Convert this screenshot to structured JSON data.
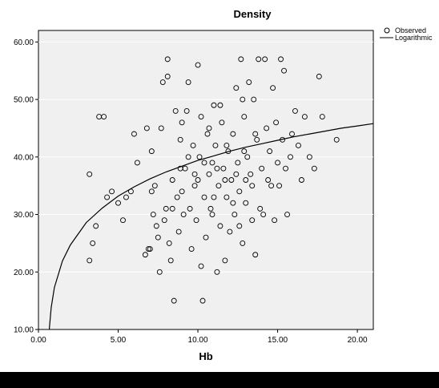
{
  "chart_data": {
    "type": "scatter",
    "title": "Density",
    "xlabel": "Hb",
    "ylabel": "",
    "xlim": [
      0,
      21
    ],
    "ylim": [
      10,
      62
    ],
    "x_ticks": [
      0,
      5,
      10,
      15,
      20
    ],
    "y_ticks": [
      10,
      20,
      30,
      40,
      50,
      60
    ],
    "x_tick_labels": [
      "0.00",
      "5.00",
      "10.00",
      "15.00",
      "20.00"
    ],
    "y_tick_labels": [
      "10.00",
      "20.00",
      "30.00",
      "40.00",
      "50.00",
      "60.00"
    ],
    "grid": "horizontal",
    "legend": {
      "placement": "right",
      "entries": [
        {
          "label": "Observed",
          "marker": "circle"
        },
        {
          "label": "Logarithmic",
          "marker": "line"
        }
      ]
    },
    "series": [
      {
        "name": "Observed",
        "type": "scatter",
        "points": [
          [
            3.2,
            37
          ],
          [
            3.2,
            22
          ],
          [
            3.4,
            25
          ],
          [
            3.6,
            28
          ],
          [
            3.8,
            47
          ],
          [
            4.1,
            47
          ],
          [
            4.3,
            33
          ],
          [
            4.6,
            34
          ],
          [
            5.0,
            32
          ],
          [
            5.3,
            29
          ],
          [
            5.5,
            33
          ],
          [
            5.8,
            34
          ],
          [
            6.0,
            44
          ],
          [
            6.2,
            39
          ],
          [
            6.7,
            23
          ],
          [
            6.8,
            45
          ],
          [
            6.9,
            24
          ],
          [
            7.0,
            24
          ],
          [
            7.1,
            34
          ],
          [
            7.1,
            41
          ],
          [
            7.2,
            30
          ],
          [
            7.3,
            35
          ],
          [
            7.4,
            28
          ],
          [
            7.5,
            26
          ],
          [
            7.6,
            20
          ],
          [
            7.7,
            45
          ],
          [
            7.8,
            53
          ],
          [
            7.9,
            29
          ],
          [
            8.0,
            31
          ],
          [
            8.1,
            57
          ],
          [
            8.1,
            54
          ],
          [
            8.2,
            25
          ],
          [
            8.3,
            22
          ],
          [
            8.4,
            36
          ],
          [
            8.5,
            15
          ],
          [
            8.6,
            48
          ],
          [
            8.7,
            33
          ],
          [
            8.8,
            27
          ],
          [
            8.9,
            43
          ],
          [
            9.0,
            46
          ],
          [
            9.1,
            30
          ],
          [
            9.2,
            38
          ],
          [
            9.3,
            48
          ],
          [
            9.4,
            53
          ],
          [
            9.5,
            31
          ],
          [
            9.6,
            24
          ],
          [
            9.7,
            42
          ],
          [
            9.8,
            35
          ],
          [
            9.9,
            29
          ],
          [
            10.0,
            56
          ],
          [
            10.1,
            40
          ],
          [
            10.2,
            21
          ],
          [
            10.3,
            15
          ],
          [
            10.4,
            33
          ],
          [
            10.5,
            26
          ],
          [
            10.6,
            44
          ],
          [
            10.7,
            37
          ],
          [
            10.8,
            31
          ],
          [
            10.9,
            39
          ],
          [
            11.0,
            49
          ],
          [
            11.1,
            42
          ],
          [
            11.2,
            20
          ],
          [
            11.3,
            35
          ],
          [
            11.4,
            28
          ],
          [
            11.5,
            46
          ],
          [
            11.6,
            38
          ],
          [
            11.7,
            22
          ],
          [
            11.8,
            33
          ],
          [
            11.9,
            41
          ],
          [
            12.0,
            27
          ],
          [
            12.1,
            36
          ],
          [
            12.2,
            44
          ],
          [
            12.3,
            30
          ],
          [
            12.4,
            52
          ],
          [
            12.5,
            39
          ],
          [
            12.6,
            34
          ],
          [
            12.7,
            57
          ],
          [
            12.8,
            25
          ],
          [
            12.9,
            47
          ],
          [
            13.0,
            32
          ],
          [
            13.1,
            40
          ],
          [
            13.2,
            53
          ],
          [
            13.3,
            37
          ],
          [
            13.4,
            29
          ],
          [
            13.5,
            50
          ],
          [
            13.6,
            23
          ],
          [
            13.7,
            43
          ],
          [
            13.8,
            57
          ],
          [
            13.9,
            31
          ],
          [
            14.0,
            38
          ],
          [
            14.1,
            30
          ],
          [
            14.2,
            57
          ],
          [
            14.3,
            45
          ],
          [
            14.4,
            36
          ],
          [
            14.5,
            41
          ],
          [
            14.6,
            35
          ],
          [
            14.7,
            52
          ],
          [
            14.8,
            29
          ],
          [
            14.9,
            46
          ],
          [
            15.0,
            39
          ],
          [
            15.1,
            35
          ],
          [
            15.2,
            57
          ],
          [
            15.3,
            43
          ],
          [
            15.5,
            38
          ],
          [
            15.6,
            30
          ],
          [
            15.8,
            40
          ],
          [
            15.9,
            44
          ],
          [
            16.1,
            48
          ],
          [
            16.3,
            42
          ],
          [
            16.5,
            36
          ],
          [
            16.7,
            47
          ],
          [
            17.0,
            40
          ],
          [
            17.3,
            38
          ],
          [
            17.6,
            54
          ],
          [
            17.8,
            47
          ],
          [
            18.7,
            43
          ],
          [
            15.4,
            55
          ],
          [
            11.7,
            36
          ],
          [
            12.2,
            32
          ],
          [
            10.7,
            45
          ],
          [
            9.8,
            37
          ],
          [
            8.9,
            38
          ],
          [
            10.4,
            39
          ],
          [
            11.0,
            33
          ],
          [
            12.9,
            41
          ],
          [
            13.4,
            35
          ],
          [
            9.4,
            40
          ],
          [
            10.9,
            30
          ],
          [
            11.8,
            42
          ],
          [
            12.6,
            28
          ],
          [
            10.2,
            47
          ],
          [
            11.4,
            49
          ],
          [
            12.8,
            50
          ],
          [
            13.6,
            44
          ],
          [
            9.0,
            34
          ],
          [
            8.4,
            31
          ],
          [
            10.0,
            36
          ],
          [
            11.2,
            38
          ],
          [
            12.4,
            37
          ],
          [
            13.0,
            36
          ]
        ]
      },
      {
        "name": "Logarithmic",
        "type": "line",
        "points": [
          [
            0.68,
            10
          ],
          [
            0.8,
            13.8
          ],
          [
            1.0,
            17.3
          ],
          [
            1.5,
            21.9
          ],
          [
            2.0,
            24.7
          ],
          [
            3.0,
            28.6
          ],
          [
            4.0,
            31.1
          ],
          [
            5.0,
            33.2
          ],
          [
            6.0,
            34.8
          ],
          [
            7.0,
            36.2
          ],
          [
            8.0,
            37.4
          ],
          [
            9.0,
            38.4
          ],
          [
            10.0,
            39.4
          ],
          [
            11.0,
            40.2
          ],
          [
            12.0,
            41.0
          ],
          [
            13.0,
            41.7
          ],
          [
            14.0,
            42.3
          ],
          [
            15.0,
            42.9
          ],
          [
            16.0,
            43.5
          ],
          [
            17.0,
            44.0
          ],
          [
            18.0,
            44.5
          ],
          [
            19.0,
            45.0
          ],
          [
            20.0,
            45.4
          ],
          [
            21.0,
            45.8
          ]
        ]
      }
    ]
  }
}
